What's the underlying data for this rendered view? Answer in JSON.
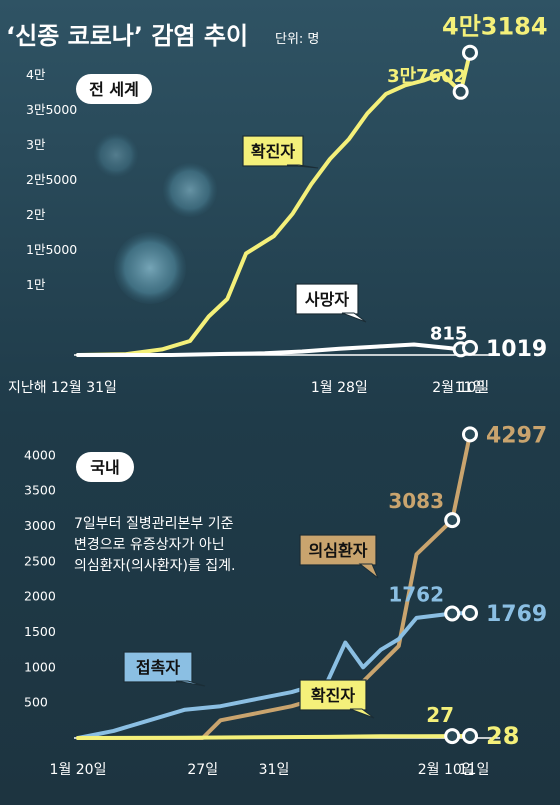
{
  "header": {
    "title": "‘신종 코로나’ 감염 추이",
    "unit": "단위: 명"
  },
  "chart_data": [
    {
      "type": "line",
      "panel_label": "전 세계",
      "yticks": [
        10000,
        15000,
        20000,
        25000,
        30000,
        35000,
        40000
      ],
      "ytick_labels": [
        "1만",
        "1만5000",
        "2만",
        "2만5000",
        "3만",
        "3만5000",
        "4만"
      ],
      "ylim": [
        0,
        45000
      ],
      "xtick_labels": [
        {
          "x": 0,
          "label": "지난해 12월 31일"
        },
        {
          "x": 28,
          "label": "1월 28일"
        },
        {
          "x": 41,
          "label": "2월 10일"
        },
        {
          "x": 42,
          "label": "11일"
        }
      ],
      "xlim": [
        0,
        42
      ],
      "series": [
        {
          "name": "확진자",
          "color": "#f4f07a",
          "x": [
            0,
            5,
            9,
            12,
            14,
            16,
            18,
            21,
            23,
            25,
            27,
            29,
            31,
            33,
            35,
            37,
            39,
            41,
            42
          ],
          "y": [
            0,
            100,
            800,
            2000,
            5500,
            8000,
            14500,
            17000,
            20200,
            24400,
            28000,
            30800,
            34500,
            37300,
            38500,
            39200,
            40200,
            37602,
            43184
          ],
          "label_x": 41,
          "label": "3만7602",
          "end_x": 42,
          "end_label": "4만3184"
        },
        {
          "name": "사망자",
          "color": "#ffffff",
          "x": [
            0,
            10,
            16,
            20,
            24,
            28,
            32,
            36,
            41,
            42
          ],
          "y": [
            0,
            0,
            150,
            250,
            500,
            900,
            1200,
            1500,
            815,
            1019
          ],
          "label_x": 41,
          "label": "815",
          "end_x": 42,
          "end_label": "1019"
        }
      ]
    },
    {
      "type": "line",
      "panel_label": "국내",
      "yticks": [
        500,
        1000,
        1500,
        2000,
        2500,
        3000,
        3500,
        4000
      ],
      "ytick_labels": [
        "500",
        "1000",
        "1500",
        "2000",
        "2500",
        "3000",
        "3500",
        "4000"
      ],
      "ylim": [
        0,
        4500
      ],
      "xtick_labels": [
        {
          "x": 0,
          "label": "1월 20일"
        },
        {
          "x": 7,
          "label": "27일"
        },
        {
          "x": 11,
          "label": "31일"
        },
        {
          "x": 21,
          "label": "2월 10일"
        },
        {
          "x": 22,
          "label": "11일"
        }
      ],
      "xlim": [
        0,
        22
      ],
      "note": [
        "7일부터 질병관리본부 기준",
        "변경으로 유증상자가 아닌",
        "의심환자(의사환자)를 집계."
      ],
      "series": [
        {
          "name": "의심환자",
          "color": "#c9a46e",
          "x": [
            0,
            7,
            8,
            10,
            12,
            14,
            16,
            18,
            19,
            21,
            22
          ],
          "y": [
            0,
            0,
            250,
            350,
            450,
            600,
            800,
            1300,
            2600,
            3083,
            4297
          ],
          "label_x": 21,
          "label": "3083",
          "end_x": 22,
          "end_label": "4297"
        },
        {
          "name": "접촉자",
          "color": "#8bbfe3",
          "x": [
            0,
            2,
            4,
            6,
            8,
            10,
            12,
            14,
            15,
            16,
            17,
            18,
            19,
            21,
            22
          ],
          "y": [
            0,
            100,
            250,
            400,
            450,
            550,
            650,
            800,
            1350,
            1000,
            1250,
            1400,
            1700,
            1762,
            1769
          ],
          "label_x": 21,
          "label": "1762",
          "end_x": 22,
          "end_label": "1769"
        },
        {
          "name": "확진자",
          "color": "#f4f07a",
          "x": [
            0,
            6,
            10,
            14,
            17,
            19,
            21,
            22
          ],
          "y": [
            0,
            4,
            11,
            15,
            24,
            25,
            27,
            28
          ],
          "label_x": 21,
          "label": "27",
          "end_x": 22,
          "end_label": "28"
        }
      ]
    }
  ]
}
